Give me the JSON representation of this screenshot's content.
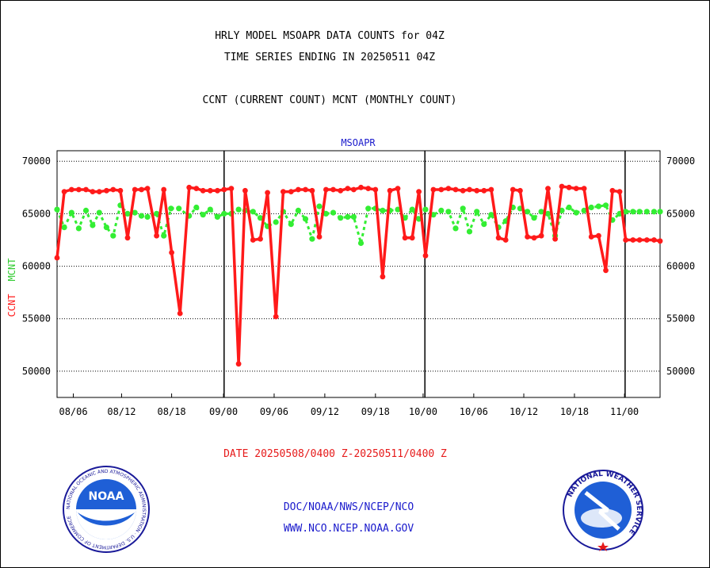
{
  "header": {
    "title_line1": "HRLY MODEL MSOAPR DATA COUNTS for 04Z",
    "title_line2": "TIME SERIES ENDING IN 20250511 04Z",
    "subtitle": "CCNT (CURRENT COUNT) MCNT (MONTHLY COUNT)"
  },
  "footer": {
    "date_range": "DATE 20250508/0400 Z-20250511/0400 Z",
    "credit_line1": "DOC/NOAA/NWS/NCEP/NCO",
    "credit_line2": "WWW.NCO.NCEP.NOAA.GOV",
    "noaa_logo_text": "NOAA",
    "noaa_ring_text": "NATIONAL OCEANIC AND ATMOSPHERIC ADMINISTRATION · U.S. DEPARTMENT OF COMMERCE",
    "nws_ring_text": "NATIONAL WEATHER SERVICE"
  },
  "colors": {
    "ccnt": "#ff1a1a",
    "mcnt": "#33ee33",
    "panel_title": "#1a1acc",
    "date_text": "#e61a1a",
    "credit_text": "#1a1acc"
  },
  "chart_data": {
    "type": "line",
    "panel_title": "MSOAPR",
    "ylabel_ccnt": "CCNT",
    "ylabel_mcnt": "MCNT",
    "ylim": [
      47500,
      71000
    ],
    "yticks": [
      50000,
      55000,
      60000,
      65000,
      70000
    ],
    "ytick_labels": [
      "50000",
      "55000",
      "60000",
      "65000",
      "70000"
    ],
    "grid": true,
    "x_range": [
      0,
      100
    ],
    "xticks": [
      {
        "x": 2.7,
        "label": "08/06"
      },
      {
        "x": 10.7,
        "label": "08/12"
      },
      {
        "x": 19.0,
        "label": "08/18"
      },
      {
        "x": 27.6,
        "label": "09/00"
      },
      {
        "x": 36.0,
        "label": "09/06"
      },
      {
        "x": 44.4,
        "label": "09/12"
      },
      {
        "x": 52.8,
        "label": "09/18"
      },
      {
        "x": 60.7,
        "label": "10/00"
      },
      {
        "x": 69.1,
        "label": "10/06"
      },
      {
        "x": 77.4,
        "label": "10/12"
      },
      {
        "x": 85.8,
        "label": "10/18"
      },
      {
        "x": 94.1,
        "label": "11/00"
      }
    ],
    "day_boundaries": [
      27.7,
      61.0,
      94.2
    ],
    "series": [
      {
        "name": "CCNT",
        "color": "#ff1a1a",
        "x": [
          0,
          1.2,
          2.4,
          3.6,
          4.8,
          5.9,
          7.0,
          8.2,
          9.3,
          10.5,
          11.7,
          12.9,
          14.0,
          15.0,
          16.5,
          17.7,
          19.0,
          20.4,
          21.9,
          23.1,
          24.2,
          25.4,
          26.6,
          27.7,
          28.9,
          30.1,
          31.2,
          32.5,
          33.7,
          34.9,
          36.3,
          37.5,
          38.8,
          40.0,
          41.2,
          42.3,
          43.5,
          44.6,
          45.8,
          47.0,
          48.2,
          49.2,
          50.4,
          51.6,
          52.8,
          54.0,
          55.2,
          56.5,
          57.7,
          58.9,
          60.0,
          61.1,
          62.4,
          63.7,
          64.9,
          66.1,
          67.3,
          68.4,
          69.6,
          70.8,
          72.0,
          73.2,
          74.4,
          75.6,
          76.8,
          78.0,
          79.1,
          80.3,
          81.4,
          82.6,
          83.7,
          84.9,
          86.1,
          87.4,
          88.6,
          89.8,
          91.0,
          92.1,
          93.3,
          94.3,
          95.5,
          96.6,
          97.8,
          99.0,
          100
        ],
        "values": [
          60800,
          67100,
          67300,
          67300,
          67300,
          67100,
          67100,
          67200,
          67300,
          67200,
          62700,
          67300,
          67300,
          67400,
          62900,
          67300,
          61300,
          55500,
          67500,
          67400,
          67200,
          67200,
          67200,
          67300,
          67400,
          50700,
          67200,
          62500,
          62600,
          67000,
          55200,
          67100,
          67100,
          67300,
          67300,
          67200,
          62800,
          67300,
          67300,
          67200,
          67400,
          67300,
          67500,
          67400,
          67300,
          59000,
          67200,
          67400,
          62700,
          62700,
          67100,
          61000,
          67300,
          67300,
          67400,
          67300,
          67200,
          67300,
          67200,
          67200,
          67300,
          62700,
          62500,
          67300,
          67200,
          62800,
          62700,
          62900,
          67400,
          62600,
          67600,
          67500,
          67400,
          67400,
          62800,
          62900,
          59600,
          67200,
          67100,
          62500,
          62500,
          62500,
          62500,
          62500,
          62400
        ]
      },
      {
        "name": "MCNT",
        "color": "#33ee33",
        "x": [
          0,
          1.2,
          2.4,
          3.6,
          4.8,
          5.9,
          7.0,
          8.2,
          9.3,
          10.5,
          11.7,
          12.9,
          14.0,
          15.0,
          16.5,
          17.7,
          18.9,
          20.2,
          21.9,
          23.1,
          24.2,
          25.4,
          26.6,
          27.7,
          28.9,
          30.1,
          31.2,
          32.5,
          33.7,
          34.9,
          36.3,
          37.5,
          38.8,
          40.0,
          41.2,
          42.3,
          43.5,
          44.6,
          45.8,
          47.0,
          48.2,
          49.2,
          50.4,
          51.6,
          52.8,
          54.0,
          55.2,
          56.5,
          57.7,
          58.9,
          60.0,
          61.1,
          62.4,
          63.7,
          64.9,
          66.1,
          67.3,
          68.4,
          69.6,
          70.8,
          72.0,
          73.2,
          74.4,
          75.6,
          76.8,
          78.0,
          79.1,
          80.3,
          81.4,
          82.6,
          83.7,
          84.9,
          86.1,
          87.4,
          88.6,
          89.8,
          91.0,
          92.1,
          93.3,
          94.3,
          95.5,
          96.6,
          97.8,
          99.0,
          100
        ],
        "values": [
          65400,
          63700,
          65100,
          63600,
          65300,
          63900,
          65100,
          63700,
          62900,
          65800,
          65000,
          65100,
          64800,
          64700,
          65000,
          62900,
          65500,
          65500,
          64800,
          65600,
          64900,
          65400,
          64700,
          65000,
          65000,
          65400,
          65300,
          65200,
          64600,
          63800,
          64200,
          65200,
          64000,
          65300,
          64500,
          62600,
          65700,
          65000,
          65100,
          64600,
          64700,
          64700,
          62200,
          65500,
          65500,
          65300,
          65300,
          65400,
          64600,
          65400,
          64500,
          65400,
          64900,
          65300,
          65200,
          63600,
          65500,
          63300,
          65200,
          64000,
          64900,
          63700,
          64300,
          65600,
          65500,
          65200,
          64600,
          65200,
          65000,
          62900,
          65300,
          65600,
          65100,
          65300,
          65600,
          65700,
          65800,
          64400,
          65000,
          65200,
          65200,
          65200,
          65200,
          65200,
          65200
        ]
      }
    ]
  }
}
